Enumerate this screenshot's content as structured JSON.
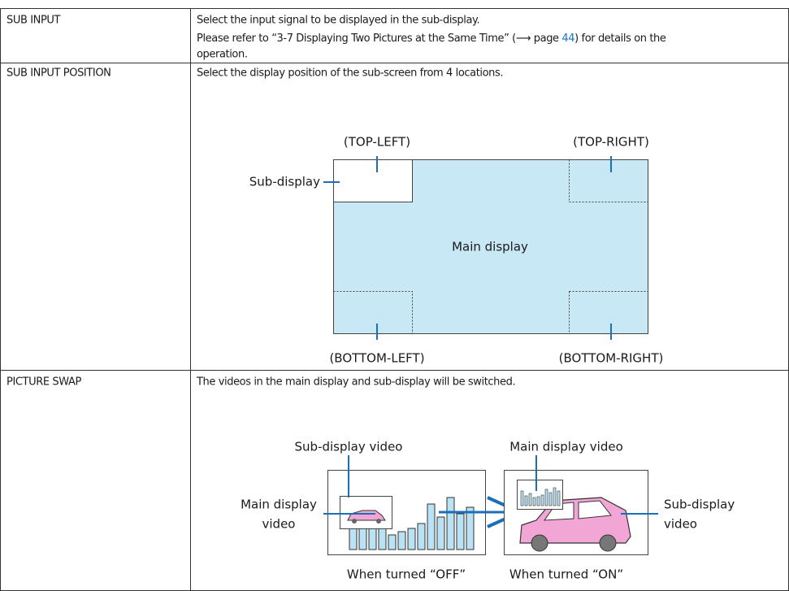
{
  "table": {
    "rows": [
      {
        "name": "SUB INPUT",
        "description": {
          "line1": "Select the input signal to be displayed in the sub-display.",
          "line2_before": "Please refer to “3-7 Displaying Two Pictures at the Same Time” (⟶ page ",
          "line2_link": "44",
          "line2_after": ") for details on the",
          "line3": "operation."
        }
      },
      {
        "name": "SUB INPUT POSITION",
        "description": "Select the display position of the sub-screen from 4 locations.",
        "diagram": {
          "top_left": "(TOP-LEFT)",
          "top_right": "(TOP-RIGHT)",
          "sub_display": "Sub-display",
          "main_display": "Main display",
          "bottom_left": "(BOTTOM-LEFT)",
          "bottom_right": "(BOTTOM-RIGHT)"
        }
      },
      {
        "name": "PICTURE SWAP",
        "description": "The videos in the main display and sub-display will be switched.",
        "diagram": {
          "sub_video_top": "Sub-display video",
          "main_video_top": "Main display video",
          "main_video_side": [
            "Main display",
            "video"
          ],
          "sub_video_side": [
            "Sub-display",
            "video"
          ],
          "caption_off": "When turned “OFF”",
          "caption_on": "When turned “ON”"
        }
      }
    ]
  }
}
